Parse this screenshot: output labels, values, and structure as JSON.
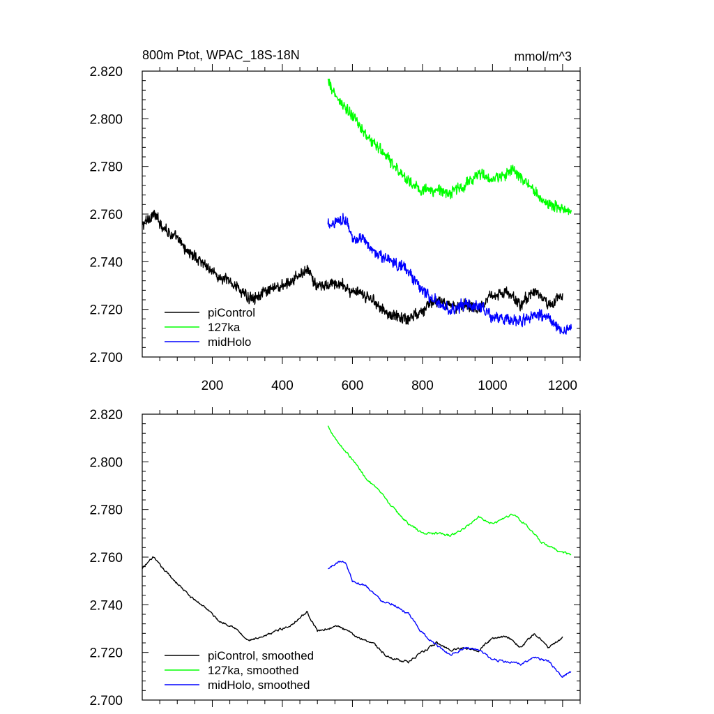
{
  "figure": {
    "title_left": "800m Ptot, WPAC_18S-18N",
    "title_right": "mmol/m^3"
  },
  "chart_data": [
    {
      "type": "line",
      "xlim": [
        0,
        1250
      ],
      "ylim": [
        2.7,
        2.82
      ],
      "yticks": [
        2.7,
        2.72,
        2.74,
        2.76,
        2.78,
        2.8,
        2.82
      ],
      "ytick_labels": [
        "2.700",
        "2.720",
        "2.740",
        "2.760",
        "2.780",
        "2.800",
        "2.820"
      ],
      "xticks": [
        200,
        400,
        600,
        800,
        1000,
        1200
      ],
      "xtick_labels": [
        "200",
        "400",
        "600",
        "800",
        "1000",
        "1200"
      ],
      "grid": false,
      "legend_position": "bottom-left",
      "noisy": true,
      "series": [
        {
          "name": "piControl",
          "color": "#000000",
          "x": [
            0,
            30,
            60,
            100,
            140,
            180,
            220,
            260,
            300,
            340,
            380,
            420,
            470,
            500,
            560,
            620,
            660,
            700,
            760,
            800,
            840,
            880,
            920,
            960,
            1000,
            1040,
            1080,
            1120,
            1160,
            1200
          ],
          "y": [
            2.755,
            2.76,
            2.755,
            2.749,
            2.743,
            2.739,
            2.733,
            2.731,
            2.725,
            2.726,
            2.729,
            2.731,
            2.737,
            2.729,
            2.731,
            2.726,
            2.724,
            2.718,
            2.716,
            2.72,
            2.724,
            2.721,
            2.722,
            2.721,
            2.726,
            2.727,
            2.722,
            2.728,
            2.722,
            2.726
          ]
        },
        {
          "name": "127ka",
          "color": "#00ff00",
          "x": [
            530,
            560,
            600,
            640,
            680,
            720,
            760,
            800,
            840,
            880,
            920,
            960,
            1000,
            1040,
            1060,
            1100,
            1140,
            1180,
            1225
          ],
          "y": [
            2.815,
            2.808,
            2.801,
            2.793,
            2.787,
            2.78,
            2.774,
            2.77,
            2.77,
            2.769,
            2.772,
            2.777,
            2.774,
            2.777,
            2.778,
            2.773,
            2.766,
            2.763,
            2.761
          ]
        },
        {
          "name": "midHolo",
          "color": "#0000ff",
          "x": [
            530,
            560,
            580,
            600,
            640,
            680,
            720,
            760,
            800,
            840,
            880,
            920,
            960,
            1000,
            1040,
            1080,
            1120,
            1160,
            1200,
            1225
          ],
          "y": [
            2.755,
            2.758,
            2.758,
            2.75,
            2.748,
            2.742,
            2.74,
            2.736,
            2.728,
            2.723,
            2.719,
            2.722,
            2.721,
            2.717,
            2.716,
            2.715,
            2.718,
            2.716,
            2.71,
            2.712
          ]
        }
      ]
    },
    {
      "type": "line",
      "xlim": [
        0,
        1250
      ],
      "ylim": [
        2.7,
        2.82
      ],
      "yticks": [
        2.7,
        2.72,
        2.74,
        2.76,
        2.78,
        2.8,
        2.82
      ],
      "ytick_labels": [
        "2.700",
        "2.720",
        "2.740",
        "2.760",
        "2.780",
        "2.800",
        "2.820"
      ],
      "xticks": [
        200,
        400,
        600,
        800,
        1000,
        1200
      ],
      "xtick_labels": [],
      "grid": false,
      "legend_position": "bottom-left",
      "noisy": false,
      "series": [
        {
          "name": "piControl, smoothed",
          "color": "#000000",
          "x": [
            0,
            30,
            60,
            100,
            140,
            180,
            220,
            260,
            300,
            340,
            380,
            420,
            470,
            500,
            560,
            620,
            660,
            700,
            760,
            800,
            840,
            880,
            920,
            960,
            1000,
            1040,
            1080,
            1120,
            1160,
            1200
          ],
          "y": [
            2.755,
            2.76,
            2.755,
            2.749,
            2.743,
            2.739,
            2.733,
            2.731,
            2.725,
            2.726,
            2.729,
            2.731,
            2.737,
            2.729,
            2.731,
            2.726,
            2.724,
            2.718,
            2.716,
            2.72,
            2.724,
            2.721,
            2.722,
            2.721,
            2.726,
            2.727,
            2.722,
            2.728,
            2.722,
            2.726
          ]
        },
        {
          "name": "127ka, smoothed",
          "color": "#00ff00",
          "x": [
            530,
            560,
            600,
            640,
            680,
            720,
            760,
            800,
            840,
            880,
            920,
            960,
            1000,
            1040,
            1060,
            1100,
            1140,
            1180,
            1225
          ],
          "y": [
            2.815,
            2.808,
            2.801,
            2.793,
            2.787,
            2.78,
            2.774,
            2.77,
            2.77,
            2.769,
            2.772,
            2.777,
            2.774,
            2.777,
            2.778,
            2.773,
            2.766,
            2.763,
            2.761
          ]
        },
        {
          "name": "midHolo, smoothed",
          "color": "#0000ff",
          "x": [
            530,
            560,
            580,
            600,
            640,
            680,
            720,
            760,
            800,
            840,
            880,
            920,
            960,
            1000,
            1040,
            1080,
            1120,
            1160,
            1200,
            1225
          ],
          "y": [
            2.755,
            2.758,
            2.758,
            2.75,
            2.748,
            2.742,
            2.74,
            2.736,
            2.728,
            2.723,
            2.719,
            2.722,
            2.721,
            2.717,
            2.716,
            2.715,
            2.718,
            2.716,
            2.71,
            2.712
          ]
        }
      ]
    }
  ]
}
